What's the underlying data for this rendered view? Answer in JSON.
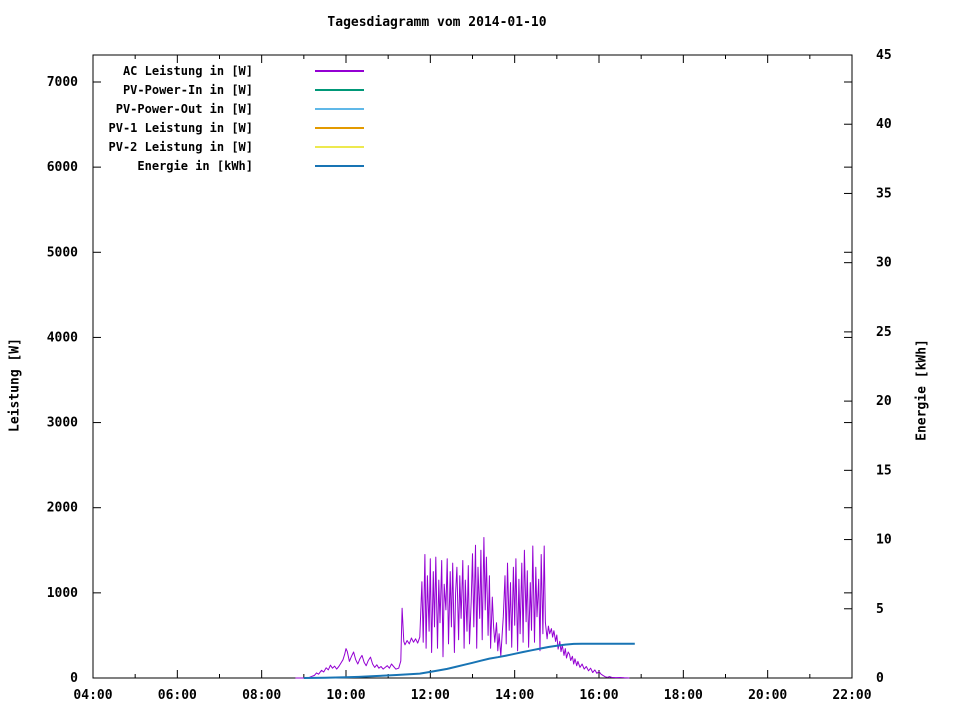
{
  "chart_data": {
    "type": "line",
    "title": "Tagesdiagramm vom 2014-01-10",
    "xlabel": "",
    "x_axis": {
      "unit": "time",
      "min_hour": 4,
      "max_hour": 22,
      "major_tick_every_hours": 2,
      "minor_tick_every_hours": 1,
      "tick_labels": [
        "04:00",
        "06:00",
        "08:00",
        "10:00",
        "12:00",
        "14:00",
        "16:00",
        "18:00",
        "20:00",
        "22:00"
      ]
    },
    "y_left": {
      "label": "Leistung [W]",
      "min": 0,
      "max": 7317,
      "tick_step": 1000,
      "tick_labels": [
        "0",
        "1000",
        "2000",
        "3000",
        "4000",
        "5000",
        "6000",
        "7000"
      ]
    },
    "y_right": {
      "label": "Energie [kWh]",
      "min": 0,
      "max": 45,
      "tick_step": 5,
      "tick_labels": [
        "0",
        "5",
        "10",
        "15",
        "20",
        "25",
        "30",
        "35",
        "40",
        "45"
      ]
    },
    "grid": false,
    "legend_position": "top-left-inside",
    "axis_color": "#000000",
    "background_color": "#ffffff",
    "series": [
      {
        "name": "AC Leistung in [W]",
        "color": "#9400D3",
        "axis": "left",
        "width": 1,
        "data": [
          [
            8.8,
            0
          ],
          [
            9.1,
            0
          ],
          [
            9.17,
            15
          ],
          [
            9.25,
            30
          ],
          [
            9.3,
            60
          ],
          [
            9.35,
            45
          ],
          [
            9.42,
            90
          ],
          [
            9.47,
            70
          ],
          [
            9.53,
            120
          ],
          [
            9.58,
            95
          ],
          [
            9.63,
            150
          ],
          [
            9.68,
            115
          ],
          [
            9.73,
            140
          ],
          [
            9.78,
            105
          ],
          [
            9.83,
            135
          ],
          [
            9.88,
            175
          ],
          [
            9.93,
            215
          ],
          [
            9.97,
            280
          ],
          [
            10.0,
            345
          ],
          [
            10.03,
            310
          ],
          [
            10.08,
            195
          ],
          [
            10.13,
            255
          ],
          [
            10.18,
            305
          ],
          [
            10.23,
            215
          ],
          [
            10.28,
            165
          ],
          [
            10.33,
            225
          ],
          [
            10.38,
            265
          ],
          [
            10.43,
            185
          ],
          [
            10.48,
            145
          ],
          [
            10.53,
            205
          ],
          [
            10.58,
            245
          ],
          [
            10.63,
            165
          ],
          [
            10.68,
            125
          ],
          [
            10.73,
            155
          ],
          [
            10.78,
            115
          ],
          [
            10.83,
            135
          ],
          [
            10.88,
            105
          ],
          [
            10.93,
            125
          ],
          [
            10.98,
            145
          ],
          [
            11.03,
            115
          ],
          [
            11.08,
            165
          ],
          [
            11.13,
            135
          ],
          [
            11.18,
            105
          ],
          [
            11.25,
            115
          ],
          [
            11.3,
            200
          ],
          [
            11.33,
            820
          ],
          [
            11.37,
            430
          ],
          [
            11.4,
            390
          ],
          [
            11.45,
            440
          ],
          [
            11.5,
            400
          ],
          [
            11.55,
            470
          ],
          [
            11.6,
            420
          ],
          [
            11.65,
            460
          ],
          [
            11.7,
            410
          ],
          [
            11.75,
            480
          ],
          [
            11.8,
            1130
          ],
          [
            11.83,
            420
          ],
          [
            11.87,
            1450
          ],
          [
            11.9,
            350
          ],
          [
            11.93,
            1200
          ],
          [
            11.97,
            550
          ],
          [
            12.0,
            1400
          ],
          [
            12.03,
            300
          ],
          [
            12.07,
            1250
          ],
          [
            12.1,
            600
          ],
          [
            12.13,
            1420
          ],
          [
            12.17,
            350
          ],
          [
            12.2,
            1150
          ],
          [
            12.23,
            650
          ],
          [
            12.27,
            1380
          ],
          [
            12.3,
            250
          ],
          [
            12.33,
            1100
          ],
          [
            12.37,
            800
          ],
          [
            12.4,
            1400
          ],
          [
            12.43,
            400
          ],
          [
            12.47,
            1250
          ],
          [
            12.5,
            600
          ],
          [
            12.53,
            1350
          ],
          [
            12.57,
            300
          ],
          [
            12.6,
            1000
          ],
          [
            12.63,
            1300
          ],
          [
            12.67,
            450
          ],
          [
            12.7,
            1200
          ],
          [
            12.73,
            700
          ],
          [
            12.77,
            1380
          ],
          [
            12.8,
            350
          ],
          [
            12.83,
            1150
          ],
          [
            12.87,
            550
          ],
          [
            12.9,
            1320
          ],
          [
            12.93,
            400
          ],
          [
            12.97,
            900
          ],
          [
            13.0,
            1460
          ],
          [
            13.03,
            600
          ],
          [
            13.07,
            1560
          ],
          [
            13.1,
            350
          ],
          [
            13.13,
            1300
          ],
          [
            13.17,
            700
          ],
          [
            13.2,
            1500
          ],
          [
            13.23,
            450
          ],
          [
            13.27,
            1650
          ],
          [
            13.3,
            800
          ],
          [
            13.33,
            1420
          ],
          [
            13.37,
            500
          ],
          [
            13.4,
            1200
          ],
          [
            13.43,
            350
          ],
          [
            13.47,
            950
          ],
          [
            13.5,
            600
          ],
          [
            13.53,
            420
          ],
          [
            13.57,
            650
          ],
          [
            13.6,
            320
          ],
          [
            13.63,
            520
          ],
          [
            13.67,
            260
          ],
          [
            13.7,
            480
          ],
          [
            13.73,
            720
          ],
          [
            13.77,
            1200
          ],
          [
            13.8,
            400
          ],
          [
            13.83,
            1350
          ],
          [
            13.87,
            560
          ],
          [
            13.9,
            1120
          ],
          [
            13.93,
            360
          ],
          [
            13.97,
            1300
          ],
          [
            14.0,
            620
          ],
          [
            14.03,
            1400
          ],
          [
            14.07,
            320
          ],
          [
            14.1,
            1160
          ],
          [
            14.13,
            520
          ],
          [
            14.17,
            1350
          ],
          [
            14.2,
            420
          ],
          [
            14.23,
            1500
          ],
          [
            14.27,
            660
          ],
          [
            14.3,
            1260
          ],
          [
            14.33,
            360
          ],
          [
            14.37,
            1120
          ],
          [
            14.4,
            560
          ],
          [
            14.43,
            1550
          ],
          [
            14.47,
            420
          ],
          [
            14.5,
            1300
          ],
          [
            14.53,
            720
          ],
          [
            14.57,
            1160
          ],
          [
            14.6,
            320
          ],
          [
            14.63,
            1450
          ],
          [
            14.67,
            520
          ],
          [
            14.7,
            1550
          ],
          [
            14.73,
            650
          ],
          [
            14.77,
            460
          ],
          [
            14.8,
            610
          ],
          [
            14.83,
            520
          ],
          [
            14.87,
            580
          ],
          [
            14.9,
            480
          ],
          [
            14.93,
            555
          ],
          [
            14.97,
            430
          ],
          [
            15.0,
            505
          ],
          [
            15.03,
            340
          ],
          [
            15.07,
            430
          ],
          [
            15.1,
            310
          ],
          [
            15.13,
            385
          ],
          [
            15.17,
            265
          ],
          [
            15.2,
            345
          ],
          [
            15.23,
            235
          ],
          [
            15.27,
            305
          ],
          [
            15.3,
            280
          ],
          [
            15.33,
            205
          ],
          [
            15.37,
            255
          ],
          [
            15.4,
            165
          ],
          [
            15.43,
            225
          ],
          [
            15.47,
            145
          ],
          [
            15.5,
            195
          ],
          [
            15.55,
            125
          ],
          [
            15.6,
            165
          ],
          [
            15.65,
            105
          ],
          [
            15.7,
            135
          ],
          [
            15.75,
            85
          ],
          [
            15.8,
            115
          ],
          [
            15.85,
            65
          ],
          [
            15.9,
            95
          ],
          [
            15.95,
            55
          ],
          [
            16.0,
            75
          ],
          [
            16.05,
            45
          ],
          [
            16.1,
            28
          ],
          [
            16.15,
            14
          ],
          [
            16.2,
            8
          ],
          [
            16.25,
            16
          ],
          [
            16.3,
            7
          ],
          [
            16.4,
            5
          ],
          [
            16.5,
            6
          ],
          [
            16.6,
            2
          ],
          [
            16.72,
            0
          ]
        ]
      },
      {
        "name": "PV-Power-In in [W]",
        "color": "#009878",
        "axis": "left",
        "width": 1,
        "data": []
      },
      {
        "name": "PV-Power-Out in [W]",
        "color": "#60B8E8",
        "axis": "left",
        "width": 1,
        "data": []
      },
      {
        "name": "PV-1 Leistung in [W]",
        "color": "#E39A00",
        "axis": "left",
        "width": 1,
        "data": []
      },
      {
        "name": "PV-2 Leistung in [W]",
        "color": "#EDE94F",
        "axis": "left",
        "width": 1,
        "data": []
      },
      {
        "name": "Energie in [kWh]",
        "color": "#1874B4",
        "axis": "right",
        "width": 2,
        "data": [
          [
            9.0,
            0
          ],
          [
            9.5,
            0.02
          ],
          [
            10.0,
            0.05
          ],
          [
            10.3,
            0.08
          ],
          [
            10.6,
            0.12
          ],
          [
            10.9,
            0.17
          ],
          [
            11.2,
            0.22
          ],
          [
            11.5,
            0.27
          ],
          [
            11.75,
            0.32
          ],
          [
            12.0,
            0.44
          ],
          [
            12.2,
            0.55
          ],
          [
            12.4,
            0.66
          ],
          [
            12.6,
            0.8
          ],
          [
            12.8,
            0.95
          ],
          [
            13.0,
            1.1
          ],
          [
            13.2,
            1.25
          ],
          [
            13.4,
            1.4
          ],
          [
            13.6,
            1.5
          ],
          [
            13.8,
            1.62
          ],
          [
            14.0,
            1.75
          ],
          [
            14.2,
            1.88
          ],
          [
            14.4,
            2.0
          ],
          [
            14.6,
            2.12
          ],
          [
            14.8,
            2.24
          ],
          [
            15.0,
            2.33
          ],
          [
            15.2,
            2.41
          ],
          [
            15.4,
            2.46
          ],
          [
            15.6,
            2.48
          ],
          [
            16.85,
            2.48
          ]
        ]
      }
    ]
  }
}
